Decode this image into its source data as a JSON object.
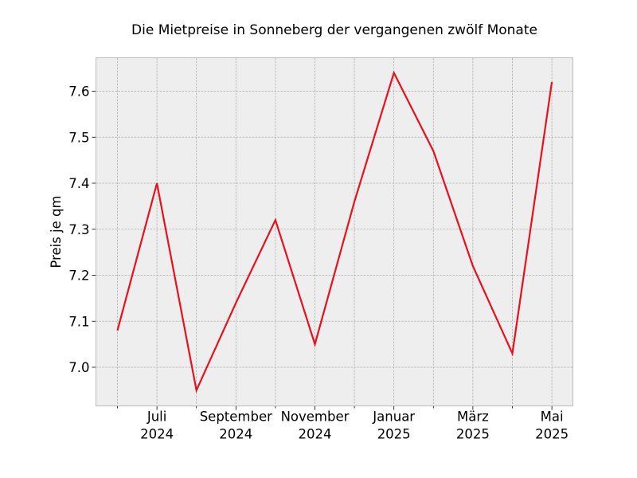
{
  "chart_data": {
    "type": "line",
    "title": "Die Mietpreise in Sonneberg der vergangenen zwölf Monate",
    "xlabel": "",
    "ylabel": "Preis je qm",
    "x": [
      "2024-06",
      "2024-07",
      "2024-08",
      "2024-09",
      "2024-10",
      "2024-11",
      "2024-12",
      "2025-01",
      "2025-02",
      "2025-03",
      "2025-04",
      "2025-05"
    ],
    "series": [
      {
        "values": [
          7.08,
          7.4,
          6.95,
          7.14,
          7.32,
          7.05,
          7.36,
          7.64,
          7.47,
          7.22,
          7.03,
          7.62
        ],
        "color": "#e8101a"
      }
    ],
    "ylim": [
      6.917,
      7.673
    ],
    "yticks": [
      7.0,
      7.1,
      7.2,
      7.3,
      7.4,
      7.5,
      7.6
    ],
    "ytick_labels": [
      "7.0",
      "7.1",
      "7.2",
      "7.3",
      "7.4",
      "7.5",
      "7.6"
    ],
    "xticks_major": [
      {
        "x": "2024-07",
        "line1": "Juli",
        "line2": "2024"
      },
      {
        "x": "2024-09",
        "line1": "September",
        "line2": "2024"
      },
      {
        "x": "2024-11",
        "line1": "November",
        "line2": "2024"
      },
      {
        "x": "2025-01",
        "line1": "Januar",
        "line2": "2025"
      },
      {
        "x": "2025-03",
        "line1": "März",
        "line2": "2025"
      },
      {
        "x": "2025-05",
        "line1": "Mai",
        "line2": "2025"
      }
    ],
    "grid": true,
    "colors": {
      "background": "#eeeeee",
      "grid": "#b0b0b0",
      "frame": "#bcbcbc"
    }
  }
}
